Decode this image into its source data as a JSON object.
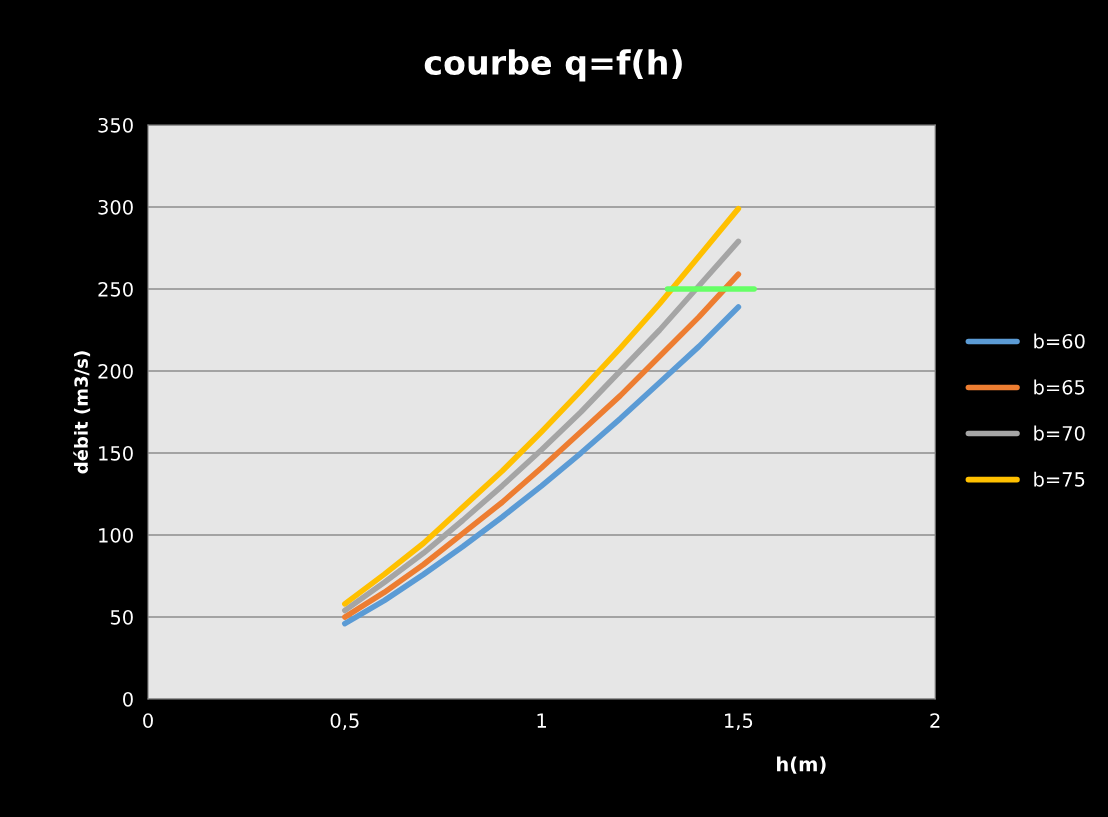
{
  "chart_data": {
    "type": "line",
    "title": "courbe q=f(h)",
    "xlabel": "h(m)",
    "ylabel": "débit (m3/s)",
    "x": [
      0.5,
      0.6,
      0.7,
      0.8,
      0.9,
      1.0,
      1.1,
      1.2,
      1.3,
      1.4,
      1.5
    ],
    "series": [
      {
        "name": "b=60",
        "color": "#5b9bd5",
        "values": [
          46,
          60,
          76,
          93,
          111,
          130,
          150,
          171,
          193,
          215,
          239
        ]
      },
      {
        "name": "b=65",
        "color": "#ed7d31",
        "values": [
          50,
          65,
          82,
          101,
          120,
          141,
          163,
          185,
          209,
          233,
          259
        ]
      },
      {
        "name": "b=70",
        "color": "#a5a5a5",
        "values": [
          54,
          71,
          89,
          109,
          130,
          152,
          175,
          200,
          225,
          252,
          279
        ]
      },
      {
        "name": "b=75",
        "color": "#ffc000",
        "values": [
          58,
          76,
          95,
          117,
          139,
          163,
          188,
          214,
          241,
          270,
          299
        ]
      },
      {
        "color": "#66ff66",
        "x": [
          1.32,
          1.54
        ],
        "values": [
          250,
          250
        ]
      }
    ],
    "xlim": [
      0,
      2
    ],
    "xticks": [
      0,
      {
        "value": 0.5,
        "label": "0,5"
      },
      1,
      {
        "value": 1.5,
        "label": "1,5"
      },
      2
    ],
    "ylim": [
      0,
      350
    ],
    "yticks": [
      0,
      50,
      100,
      150,
      200,
      250,
      300,
      350
    ],
    "grid": "y",
    "legend": "right",
    "marker": "none",
    "line_style": "solid"
  }
}
